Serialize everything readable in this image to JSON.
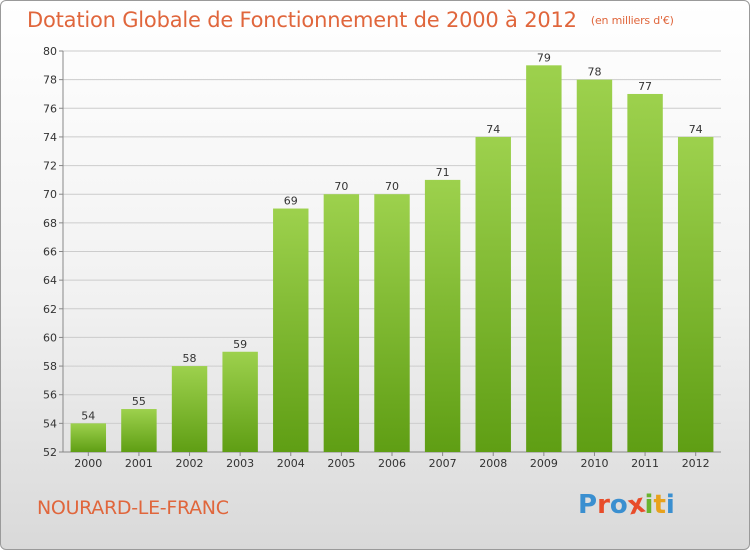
{
  "header": {
    "title": "Dotation Globale de Fonctionnement de 2000 à 2012",
    "unit": "(en milliers d'€)"
  },
  "footer": {
    "commune": "NOURARD-LE-FRANC",
    "logo_text": "Proxiti",
    "logo_colors": [
      "#3a8fd0",
      "#e84c2a",
      "#3a8fd0",
      "#e84c2a",
      "#69b32e",
      "#e8a21c",
      "#3a8fd0"
    ]
  },
  "colors": {
    "bar_light": "#9dd14d",
    "bar_dark": "#5f9e14",
    "grid": "#cccccc",
    "title": "#e0663c"
  },
  "chart_data": {
    "type": "bar",
    "categories": [
      "2000",
      "2001",
      "2002",
      "2003",
      "2004",
      "2005",
      "2006",
      "2007",
      "2008",
      "2009",
      "2010",
      "2011",
      "2012"
    ],
    "values": [
      54,
      55,
      58,
      59,
      69,
      70,
      70,
      71,
      74,
      79,
      78,
      77,
      74
    ],
    "ylim": [
      52,
      80
    ],
    "yticks": [
      52,
      54,
      56,
      58,
      60,
      62,
      64,
      66,
      68,
      70,
      72,
      74,
      76,
      78,
      80
    ],
    "grid": true,
    "xlabel": "",
    "ylabel": ""
  }
}
